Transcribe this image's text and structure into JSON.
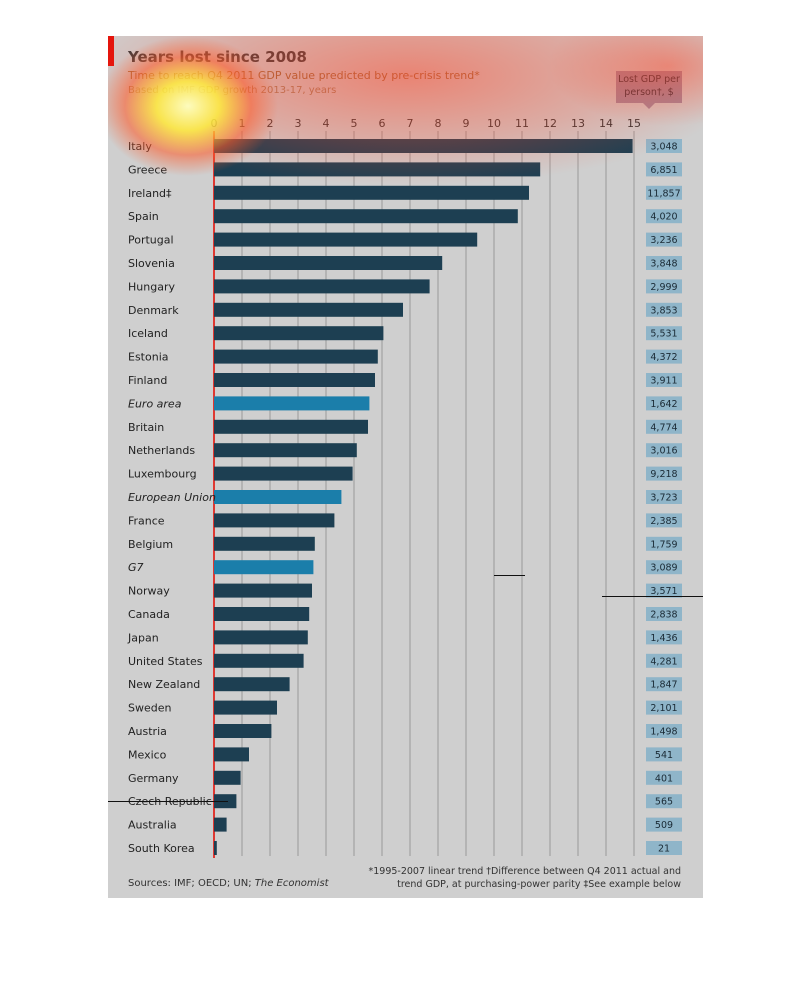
{
  "chart_data": {
    "type": "bar",
    "title": "Years lost since 2008",
    "subtitle": "Time to reach Q4 2011 GDP value predicted by pre-crisis trend*",
    "subtitle2": "Based on IMF GDP growth 2013-17, years",
    "value_box_header": "Lost GDP per person†, $",
    "xlim": [
      0,
      15
    ],
    "x_ticks": [
      "0",
      "1",
      "2",
      "3",
      "4",
      "5",
      "6",
      "7",
      "8",
      "9",
      "10",
      "11",
      "12",
      "13",
      "14",
      "15"
    ],
    "grid": true,
    "categories": [
      "Italy",
      "Greece",
      "Ireland‡",
      "Spain",
      "Portugal",
      "Slovenia",
      "Hungary",
      "Denmark",
      "Iceland",
      "Estonia",
      "Finland",
      "Euro area",
      "Britain",
      "Netherlands",
      "Luxembourg",
      "European Union",
      "France",
      "Belgium",
      "G7",
      "Norway",
      "Canada",
      "Japan",
      "United States",
      "New Zealand",
      "Sweden",
      "Austria",
      "Mexico",
      "Germany",
      "Czech Republic",
      "Australia",
      "South Korea"
    ],
    "values": [
      14.95,
      11.65,
      11.25,
      10.85,
      9.4,
      8.15,
      7.7,
      6.75,
      6.05,
      5.85,
      5.75,
      5.55,
      5.5,
      5.1,
      4.95,
      4.55,
      4.3,
      3.6,
      3.55,
      3.5,
      3.4,
      3.35,
      3.2,
      2.7,
      2.25,
      2.05,
      1.25,
      0.95,
      0.8,
      0.45,
      0.1
    ],
    "aggregates": [
      "Euro area",
      "European Union",
      "G7"
    ],
    "lost_gdp_per_person": [
      "3,048",
      "6,851",
      "11,857",
      "4,020",
      "3,236",
      "3,848",
      "2,999",
      "3,853",
      "5,531",
      "4,372",
      "3,911",
      "1,642",
      "4,774",
      "3,016",
      "9,218",
      "3,723",
      "2,385",
      "1,759",
      "3,089",
      "3,571",
      "2,838",
      "1,436",
      "4,281",
      "1,847",
      "2,101",
      "1,498",
      "541",
      "401",
      "565",
      "509",
      "21"
    ]
  },
  "footnotes": {
    "line1": "*1995-2007 linear trend   †Difference between Q4 2011 actual and",
    "line2": "trend GDP, at purchasing-power parity   ‡See example below"
  },
  "sources": {
    "prefix": "Sources: IMF; OECD; UN; ",
    "publication": "The Economist"
  },
  "colors": {
    "background": "#cfcfcf",
    "bar": "#1d3f52",
    "bar_aggregate": "#1b7eaa",
    "value_box": "#8fb5c9",
    "axis_red": "#e3120b",
    "grid": "#9a9a9a"
  }
}
